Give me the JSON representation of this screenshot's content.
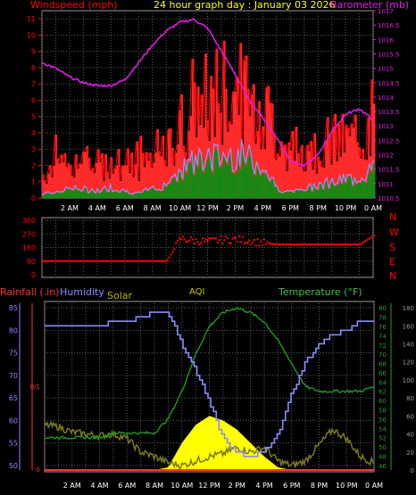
{
  "colors": {
    "background": "#000000",
    "windspeed": "#ff0000",
    "gust_fill": "#ff2a2a",
    "avg_fill": "#138a13",
    "avg_line": "#9a90ff",
    "barometer": "#e21be2",
    "title": "#ffff00",
    "grid": "#5b5b5b",
    "rain": "#ff3030",
    "humidity": "#8a8aff",
    "solar": "#ffff00",
    "solar_label": "#b8b800",
    "aqi": "#c8c800",
    "temperature": "#1f9a1f",
    "temp_label": "#40c040",
    "outline": "#9a9a9a",
    "dim_line": "#7a7a22"
  },
  "top_chart": {
    "title": "24 hour graph day : January 03 2026",
    "left_label": "Windspeed (mph)",
    "right_label": "Barometer (mb)",
    "left_ticks": [
      "11",
      "10",
      "9",
      "8",
      "7",
      "6",
      "5",
      "4",
      "3",
      "2",
      "1",
      "0"
    ],
    "right_ticks": [
      "1017",
      "1016.5",
      "1016",
      "1015.5",
      "1015",
      "1014.5",
      "1014",
      "1013.5",
      "1013",
      "1012.5",
      "1012",
      "1011.5",
      "1011",
      "1010.5"
    ],
    "x_labels": [
      "2 AM",
      "4 AM",
      "6 AM",
      "8 AM",
      "10 AM",
      "12 PM",
      "2 PM",
      "4 PM",
      "6 PM",
      "8 PM",
      "10 PM",
      "0 AM"
    ]
  },
  "wind_dir_chart": {
    "left_ticks": [
      "360",
      "270",
      "180",
      "90",
      "0"
    ],
    "compass": [
      "N",
      "W",
      "S",
      "E",
      "N"
    ]
  },
  "bottom_chart": {
    "rainfall_label": "Rainfall (.in)",
    "humidity_label": "Humidity",
    "solar_label": "Solar",
    "aqi_label": "AQI",
    "temperature_label": "Temperature (°F)",
    "humidity_ticks": [
      "85",
      "80",
      "75",
      "70",
      "65",
      "60",
      "55",
      "50"
    ],
    "rain_ticks": [
      "0/1",
      "0"
    ],
    "temp_ticks": [
      "80",
      "78",
      "76",
      "74",
      "72",
      "70",
      "68",
      "66",
      "64",
      "62",
      "60",
      "58",
      "56",
      "54",
      "52",
      "50",
      "48",
      "46"
    ],
    "solar_ticks": [
      "180",
      "160",
      "140",
      "120",
      "100",
      "80",
      "60",
      "40",
      "20",
      "0"
    ],
    "x_labels": [
      "2 AM",
      "4 AM",
      "6 AM",
      "8 AM",
      "10 AM",
      "12 PM",
      "2 PM",
      "4 PM",
      "6 PM",
      "8 PM",
      "10 PM",
      "0 AM"
    ]
  },
  "chart_data": [
    {
      "type": "line",
      "title": "24 hour graph day : January 03 2026",
      "xlabel": "",
      "ylabel": "Windspeed (mph)",
      "y2label": "Barometer (mb)",
      "x": [
        "0 AM",
        "1 AM",
        "2 AM",
        "3 AM",
        "4 AM",
        "5 AM",
        "6 AM",
        "7 AM",
        "8 AM",
        "9 AM",
        "10 AM",
        "11 AM",
        "12 PM",
        "1 PM",
        "2 PM",
        "3 PM",
        "4 PM",
        "5 PM",
        "6 PM",
        "7 PM",
        "8 PM",
        "9 PM",
        "10 PM",
        "11 PM",
        "0 AM"
      ],
      "ylim": [
        0,
        11.5
      ],
      "y2lim": [
        1010.5,
        1017
      ],
      "grid": true,
      "series": [
        {
          "name": "Windspeed (mph)",
          "axis": "left",
          "values": [
            1.5,
            2,
            2.3,
            2.3,
            2.0,
            2.5,
            2.2,
            1.8,
            2.2,
            2.8,
            4.5,
            5.5,
            6.0,
            6.5,
            6.8,
            6.0,
            5.5,
            4.0,
            3.2,
            3.0,
            3.3,
            3.5,
            3.6,
            3.8,
            5.2
          ]
        },
        {
          "name": "",
          "axis": "left",
          "values": [
            0.2,
            0.4,
            0.5,
            0.5,
            0.4,
            0.6,
            0.4,
            0.3,
            0.5,
            0.8,
            1.6,
            2.0,
            2.2,
            2.3,
            2.5,
            2.2,
            1.8,
            0.6,
            0.3,
            0.5,
            0.8,
            0.9,
            1.0,
            1.2,
            1.6
          ]
        },
        {
          "name": "Barometer (mb)",
          "axis": "right",
          "values": [
            1015.2,
            1015.0,
            1014.7,
            1014.5,
            1014.4,
            1014.4,
            1014.6,
            1015.2,
            1015.8,
            1016.3,
            1016.6,
            1016.7,
            1016.4,
            1015.6,
            1014.8,
            1013.9,
            1013.3,
            1012.6,
            1011.8,
            1011.6,
            1012.0,
            1012.8,
            1013.4,
            1013.6,
            1013.2
          ]
        }
      ]
    },
    {
      "type": "scatter",
      "title": "",
      "ylabel": "",
      "ylim": [
        0,
        360
      ],
      "x": [
        "0 AM",
        "1 AM",
        "2 AM",
        "3 AM",
        "4 AM",
        "5 AM",
        "6 AM",
        "7 AM",
        "8 AM",
        "9 AM",
        "10 AM",
        "11 AM",
        "12 PM",
        "1 PM",
        "2 PM",
        "3 PM",
        "4 PM",
        "5 PM",
        "6 PM",
        "7 PM",
        "8 PM",
        "9 PM",
        "10 PM",
        "11 PM",
        "0 AM"
      ],
      "series": [
        {
          "name": "",
          "values": [
            90,
            90,
            90,
            90,
            90,
            90,
            90,
            90,
            90,
            90,
            240,
            225,
            220,
            230,
            235,
            225,
            210,
            200,
            200,
            200,
            200,
            200,
            200,
            200,
            260
          ]
        }
      ]
    },
    {
      "type": "line",
      "title": "",
      "xlabel": "",
      "ylabel": "Humidity",
      "y2label": "Temperature (°F)",
      "x": [
        "0 AM",
        "1 AM",
        "2 AM",
        "3 AM",
        "4 AM",
        "5 AM",
        "6 AM",
        "7 AM",
        "8 AM",
        "9 AM",
        "10 AM",
        "11 AM",
        "12 PM",
        "1 PM",
        "2 PM",
        "3 PM",
        "4 PM",
        "5 PM",
        "6 PM",
        "7 PM",
        "8 PM",
        "9 PM",
        "10 PM",
        "11 PM",
        "0 AM"
      ],
      "ylim": [
        49,
        86
      ],
      "y2lim": [
        45,
        81
      ],
      "grid": true,
      "series": [
        {
          "name": "Humidity",
          "axis": "left",
          "values": [
            81,
            81,
            81,
            81,
            81,
            82,
            82,
            83,
            84,
            84,
            77,
            71,
            64,
            56,
            53,
            52,
            53,
            57,
            66,
            73,
            77,
            79,
            80,
            82,
            82
          ]
        },
        {
          "name": "Temperature (°F)",
          "axis": "right",
          "values": [
            52,
            52,
            52,
            52,
            52,
            53,
            53,
            53,
            53,
            56,
            62,
            70,
            76,
            79,
            80,
            79,
            77,
            73,
            68,
            63,
            62,
            62,
            62,
            62,
            63
          ]
        },
        {
          "name": "Solar",
          "axis": "solar",
          "values": [
            0,
            0,
            0,
            0,
            0,
            0,
            0,
            0,
            0,
            3,
            30,
            50,
            60,
            55,
            45,
            30,
            15,
            3,
            0,
            0,
            0,
            0,
            0,
            0,
            0
          ]
        },
        {
          "name": "AQI",
          "axis": "solar",
          "values": [
            50,
            48,
            42,
            40,
            38,
            40,
            35,
            20,
            15,
            8,
            5,
            10,
            15,
            18,
            25,
            20,
            25,
            10,
            5,
            10,
            28,
            45,
            35,
            15,
            8
          ]
        }
      ]
    }
  ]
}
